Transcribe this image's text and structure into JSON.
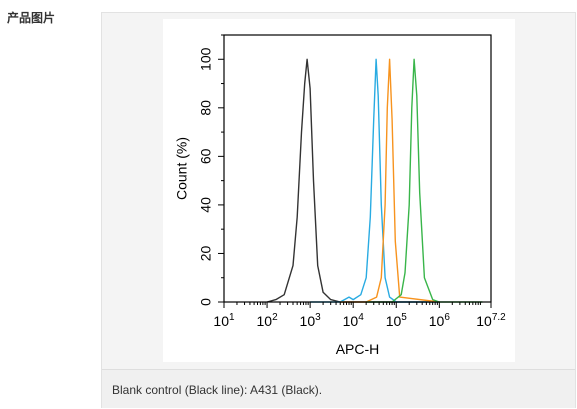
{
  "section": {
    "label": "产品图片"
  },
  "caption": "Blank control (Black line): A431 (Black).",
  "chart_data": {
    "type": "line",
    "xlabel": "APC-H",
    "ylabel": "Count  (%)",
    "x_scale": "log",
    "xlim": [
      10,
      15848932
    ],
    "ylim": [
      0,
      110
    ],
    "x_ticks": [
      {
        "base": "10",
        "exp": "1"
      },
      {
        "base": "10",
        "exp": "2"
      },
      {
        "base": "10",
        "exp": "3"
      },
      {
        "base": "10",
        "exp": "4"
      },
      {
        "base": "10",
        "exp": "5"
      },
      {
        "base": "10",
        "exp": "6"
      },
      {
        "base": "10",
        "exp": "7.2"
      }
    ],
    "y_ticks": [
      "0",
      "20",
      "40",
      "60",
      "80",
      "100"
    ],
    "series": [
      {
        "color": "#333333",
        "x": [
          100,
          160,
          250,
          400,
          500,
          630,
          750,
          850,
          1000,
          1200,
          1500,
          2000,
          3000,
          5000,
          10000,
          30000,
          100000,
          1000000
        ],
        "y": [
          0,
          1,
          3,
          15,
          35,
          70,
          90,
          100,
          88,
          50,
          15,
          4,
          1,
          0,
          0,
          0,
          0,
          0
        ]
      },
      {
        "color": "#29abe2",
        "x": [
          1000,
          5000,
          8000,
          10000,
          15000,
          20000,
          25000,
          30000,
          34000,
          38000,
          45000,
          55000,
          70000,
          100000,
          1000000
        ],
        "y": [
          0,
          0,
          2,
          1,
          3,
          10,
          35,
          75,
          100,
          85,
          40,
          10,
          2,
          0,
          0
        ]
      },
      {
        "color": "#f7931e",
        "x": [
          5000,
          20000,
          35000,
          45000,
          55000,
          62000,
          70000,
          80000,
          95000,
          120000,
          1000000
        ],
        "y": [
          0,
          0,
          2,
          10,
          40,
          80,
          100,
          75,
          25,
          2,
          0
        ]
      },
      {
        "color": "#39b54a",
        "x": [
          20000,
          80000,
          130000,
          160000,
          200000,
          230000,
          260000,
          300000,
          350000,
          450000,
          700000,
          1000000,
          10000000
        ],
        "y": [
          0,
          0,
          3,
          12,
          40,
          80,
          100,
          85,
          45,
          10,
          1,
          0,
          0
        ]
      }
    ]
  }
}
